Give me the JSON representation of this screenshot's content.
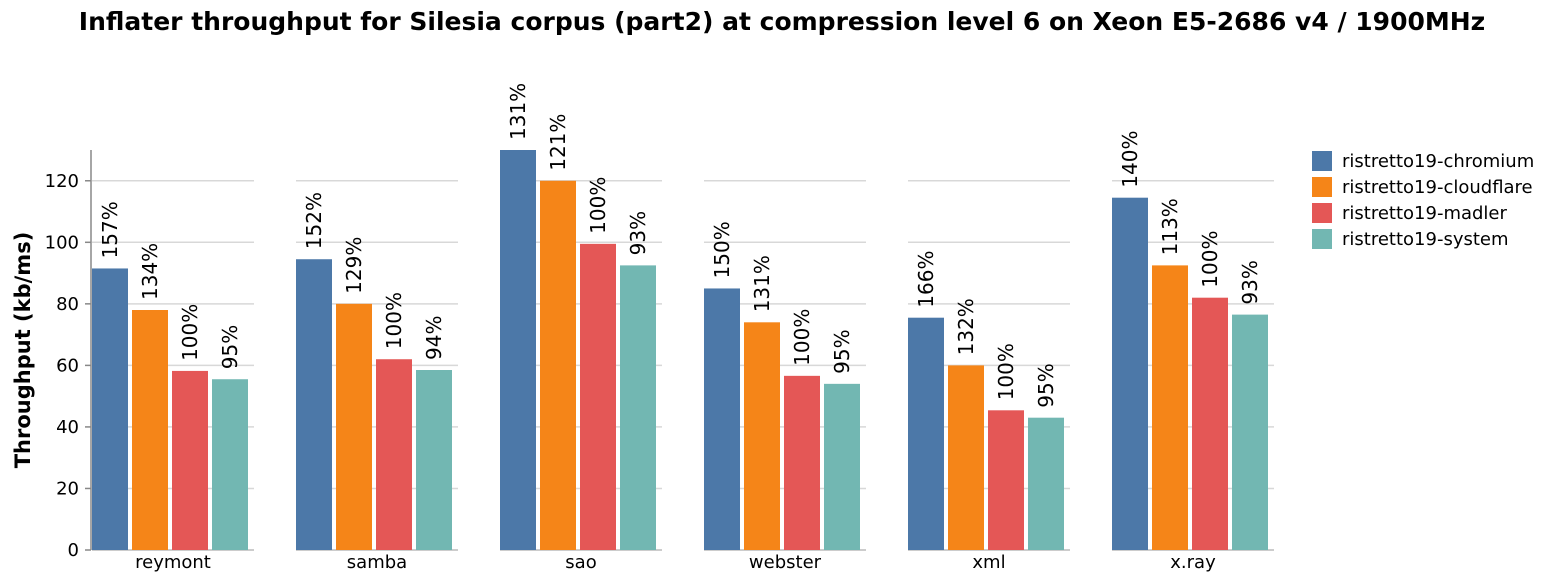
{
  "chart_data": {
    "type": "bar",
    "title": "Inflater throughput for Silesia corpus (part2) at compression level 6 on Xeon E5-2686 v4 / 1900MHz",
    "ylabel": "Throughput (kb/ms)",
    "xlabel": "",
    "ylim": [
      0,
      130
    ],
    "yticks": [
      0,
      20,
      40,
      60,
      80,
      100,
      120
    ],
    "grid": true,
    "legend_position": "right",
    "categories": [
      "reymont",
      "samba",
      "sao",
      "webster",
      "xml",
      "x.ray"
    ],
    "series": [
      {
        "name": "ristretto19-chromium",
        "color": "#4c78a8",
        "values": [
          91.5,
          94.5,
          130,
          85,
          75.5,
          114.5
        ],
        "labels": [
          "157%",
          "152%",
          "131%",
          "150%",
          "166%",
          "140%"
        ]
      },
      {
        "name": "ristretto19-cloudflare",
        "color": "#f58518",
        "values": [
          78,
          80,
          120,
          74,
          60,
          92.5
        ],
        "labels": [
          "134%",
          "129%",
          "121%",
          "131%",
          "132%",
          "113%"
        ]
      },
      {
        "name": "ristretto19-madler",
        "color": "#e45756",
        "values": [
          58.2,
          62,
          99.5,
          56.6,
          45.4,
          82
        ],
        "labels": [
          "100%",
          "100%",
          "100%",
          "100%",
          "100%",
          "100%"
        ]
      },
      {
        "name": "ristretto19-system",
        "color": "#72b7b2",
        "values": [
          55.5,
          58.5,
          92.5,
          54,
          43,
          76.5
        ],
        "labels": [
          "95%",
          "94%",
          "93%",
          "95%",
          "95%",
          "93%"
        ]
      }
    ]
  }
}
